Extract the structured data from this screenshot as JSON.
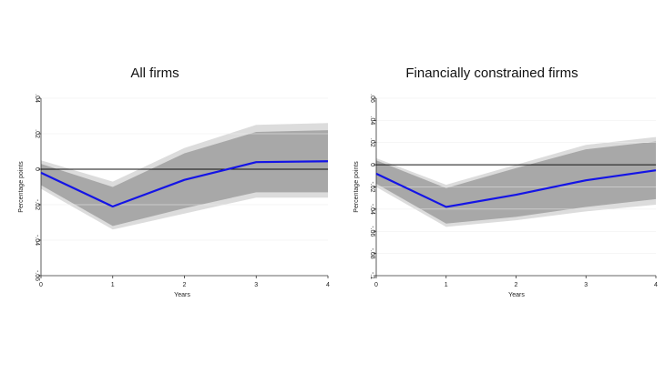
{
  "chart_data": [
    {
      "type": "line",
      "title": "All firms",
      "xlabel": "Years",
      "ylabel": "Percentage points",
      "x": [
        0,
        1,
        2,
        3,
        4
      ],
      "xticks": [
        "0",
        "1",
        "2",
        "3",
        "4"
      ],
      "ylim": [
        -0.06,
        0.04
      ],
      "yticks": [
        -0.06,
        -0.04,
        -0.02,
        0,
        0.02,
        0.04
      ],
      "ytick_labels": [
        "-.06",
        "-.04",
        "-.02",
        "0",
        ".02",
        ".04"
      ],
      "series": [
        {
          "values": [
            -0.002,
            -0.021,
            -0.006,
            0.004,
            0.0045
          ]
        }
      ],
      "band_outer": {
        "upper": [
          0.005,
          -0.007,
          0.012,
          0.025,
          0.026
        ],
        "lower": [
          -0.011,
          -0.034,
          -0.025,
          -0.016,
          -0.016
        ]
      },
      "band_inner": {
        "upper": [
          0.003,
          -0.01,
          0.009,
          0.021,
          0.022
        ],
        "lower": [
          -0.009,
          -0.032,
          -0.022,
          -0.013,
          -0.013
        ]
      },
      "reference_line": 0,
      "colors": {
        "line": "#1414e6",
        "band_outer": "#dcdcdc",
        "band_inner": "#a8a8a8",
        "reference": "#111111"
      }
    },
    {
      "type": "line",
      "title": "Financially constrained firms",
      "xlabel": "Years",
      "ylabel": "Percentage points",
      "x": [
        0,
        1,
        2,
        3,
        4
      ],
      "xticks": [
        "0",
        "1",
        "2",
        "3",
        "4"
      ],
      "ylim": [
        -0.1,
        0.06
      ],
      "yticks": [
        -0.1,
        -0.08,
        -0.06,
        -0.04,
        -0.02,
        0,
        0.02,
        0.04,
        0.06
      ],
      "ytick_labels": [
        "-.1",
        "-.08",
        "-.06",
        "-.04",
        "-.02",
        "0",
        ".02",
        ".04",
        ".06"
      ],
      "series": [
        {
          "values": [
            -0.008,
            -0.038,
            -0.027,
            -0.014,
            -0.005
          ]
        }
      ],
      "band_outer": {
        "upper": [
          0.006,
          -0.018,
          0.0,
          0.018,
          0.025
        ],
        "lower": [
          -0.02,
          -0.056,
          -0.05,
          -0.042,
          -0.036
        ]
      },
      "band_inner": {
        "upper": [
          0.004,
          -0.021,
          -0.003,
          0.014,
          0.021
        ],
        "lower": [
          -0.017,
          -0.053,
          -0.047,
          -0.038,
          -0.031
        ]
      },
      "reference_line": 0,
      "colors": {
        "line": "#1414e6",
        "band_outer": "#dcdcdc",
        "band_inner": "#a8a8a8",
        "reference": "#111111"
      }
    }
  ]
}
